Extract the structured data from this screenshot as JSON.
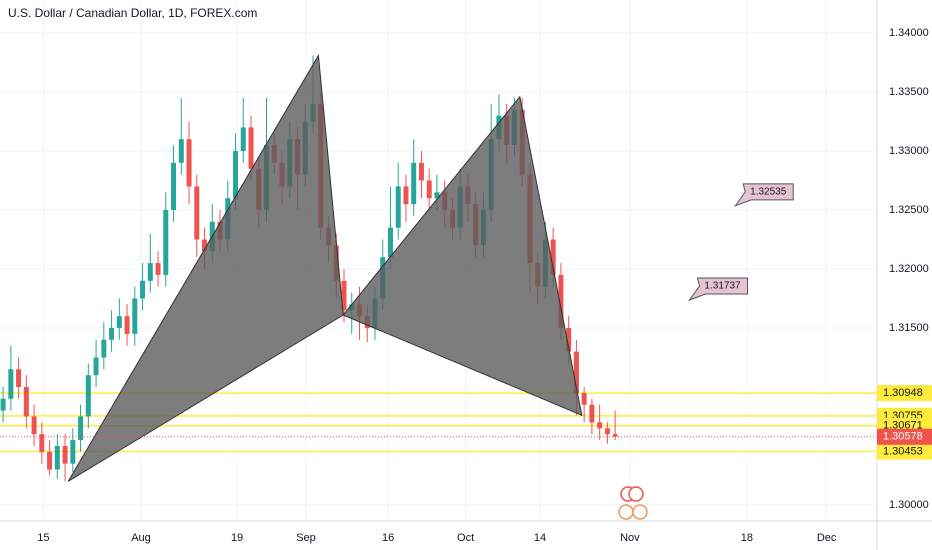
{
  "chart_data": {
    "type": "candlestick",
    "title": "U.S. Dollar / Canadian Dollar, 1D, FOREX.com",
    "x": [
      0,
      1,
      2,
      3,
      4,
      5,
      6,
      7,
      8,
      9,
      10,
      11,
      12,
      13,
      14,
      15,
      16,
      17,
      18,
      19,
      20,
      21,
      22,
      23,
      24,
      25,
      26,
      27,
      28,
      29,
      30,
      31,
      32,
      33,
      34,
      35,
      36,
      37,
      38,
      39,
      40,
      41,
      42,
      43,
      44,
      45,
      46,
      47,
      48,
      49,
      50,
      51,
      52,
      53,
      54,
      55,
      56,
      57,
      58,
      59,
      60,
      61,
      62,
      63,
      64,
      65,
      66,
      67,
      68,
      69,
      70,
      71,
      72,
      73,
      74,
      75,
      76,
      77,
      78,
      79
    ],
    "open": [
      1.308,
      1.309,
      1.3115,
      1.31,
      1.3075,
      1.306,
      1.3045,
      1.303,
      1.305,
      1.3035,
      1.3055,
      1.3075,
      1.311,
      1.3125,
      1.314,
      1.315,
      1.316,
      1.3145,
      1.3175,
      1.319,
      1.3205,
      1.3195,
      1.325,
      1.329,
      1.331,
      1.327,
      1.3225,
      1.3215,
      1.324,
      1.3225,
      1.326,
      1.33,
      1.332,
      1.3285,
      1.325,
      1.3305,
      1.329,
      1.327,
      1.331,
      1.328,
      1.3325,
      1.334,
      1.3235,
      1.322,
      1.319,
      1.3165,
      1.317,
      1.316,
      1.315,
      1.3175,
      1.321,
      1.3235,
      1.327,
      1.3255,
      1.329,
      1.3275,
      1.326,
      1.3265,
      1.325,
      1.3235,
      1.327,
      1.3255,
      1.322,
      1.325,
      1.331,
      1.333,
      1.3305,
      1.3335,
      1.328,
      1.3205,
      1.3185,
      1.3225,
      1.3195,
      1.315,
      1.313,
      1.3095,
      1.3085,
      1.307,
      1.3065,
      1.306
    ],
    "high": [
      1.31,
      1.3135,
      1.3125,
      1.311,
      1.3085,
      1.307,
      1.3055,
      1.306,
      1.306,
      1.3065,
      1.3085,
      1.312,
      1.314,
      1.3155,
      1.3165,
      1.3175,
      1.317,
      1.3185,
      1.3205,
      1.323,
      1.3215,
      1.3265,
      1.3305,
      1.3345,
      1.3325,
      1.328,
      1.3235,
      1.3255,
      1.325,
      1.3275,
      1.3315,
      1.3345,
      1.333,
      1.3295,
      1.3345,
      1.3315,
      1.33,
      1.3325,
      1.332,
      1.334,
      1.3381,
      1.335,
      1.3245,
      1.323,
      1.32,
      1.318,
      1.3185,
      1.317,
      1.3185,
      1.3225,
      1.327,
      1.329,
      1.328,
      1.331,
      1.33,
      1.3285,
      1.328,
      1.3275,
      1.326,
      1.3285,
      1.328,
      1.3265,
      1.3265,
      1.334,
      1.3348,
      1.334,
      1.3345,
      1.3345,
      1.329,
      1.3215,
      1.324,
      1.3235,
      1.3205,
      1.316,
      1.314,
      1.31,
      1.309,
      1.3085,
      1.307,
      1.308
    ],
    "low": [
      1.307,
      1.308,
      1.309,
      1.3065,
      1.305,
      1.3035,
      1.3025,
      1.3022,
      1.302,
      1.3028,
      1.3045,
      1.3065,
      1.31,
      1.3115,
      1.313,
      1.314,
      1.3135,
      1.3135,
      1.3165,
      1.318,
      1.3185,
      1.3185,
      1.324,
      1.328,
      1.3255,
      1.321,
      1.32,
      1.3205,
      1.3215,
      1.3215,
      1.325,
      1.329,
      1.3275,
      1.3235,
      1.324,
      1.328,
      1.3255,
      1.326,
      1.325,
      1.327,
      1.3315,
      1.3225,
      1.3205,
      1.3175,
      1.3155,
      1.3145,
      1.314,
      1.3138,
      1.314,
      1.3165,
      1.32,
      1.3225,
      1.324,
      1.3245,
      1.326,
      1.325,
      1.325,
      1.3235,
      1.3225,
      1.3225,
      1.324,
      1.321,
      1.321,
      1.324,
      1.33,
      1.329,
      1.3295,
      1.327,
      1.318,
      1.317,
      1.3175,
      1.3185,
      1.314,
      1.312,
      1.3076,
      1.307,
      1.306,
      1.3055,
      1.3052,
      1.3055
    ],
    "close": [
      1.309,
      1.3115,
      1.31,
      1.3075,
      1.306,
      1.3045,
      1.303,
      1.305,
      1.3035,
      1.3055,
      1.3075,
      1.311,
      1.3125,
      1.314,
      1.315,
      1.316,
      1.3145,
      1.3175,
      1.319,
      1.3205,
      1.3195,
      1.325,
      1.329,
      1.331,
      1.327,
      1.3225,
      1.3215,
      1.324,
      1.3225,
      1.326,
      1.33,
      1.332,
      1.3285,
      1.325,
      1.3305,
      1.329,
      1.327,
      1.331,
      1.328,
      1.3325,
      1.334,
      1.3235,
      1.322,
      1.319,
      1.3165,
      1.317,
      1.316,
      1.315,
      1.3175,
      1.321,
      1.3235,
      1.327,
      1.3255,
      1.329,
      1.3275,
      1.326,
      1.3265,
      1.325,
      1.3235,
      1.327,
      1.3255,
      1.322,
      1.325,
      1.331,
      1.333,
      1.3305,
      1.3335,
      1.328,
      1.3205,
      1.3185,
      1.3225,
      1.3195,
      1.315,
      1.313,
      1.3095,
      1.3085,
      1.307,
      1.3065,
      1.306,
      1.3058
    ],
    "up_color": "#26a69a",
    "down_color": "#ef5350",
    "xlim": [
      -0.4,
      112.8
    ],
    "ylim": [
      1.29864,
      1.3428
    ],
    "xticks": [
      {
        "value": 5.2,
        "label": "15"
      },
      {
        "value": 17.8,
        "label": "Aug"
      },
      {
        "value": 30.2,
        "label": "19"
      },
      {
        "value": 39.1,
        "label": "Sep"
      },
      {
        "value": 49.7,
        "label": "16"
      },
      {
        "value": 59.7,
        "label": "Oct"
      },
      {
        "value": 69.3,
        "label": "14"
      },
      {
        "value": 80.9,
        "label": "Nov"
      },
      {
        "value": 96,
        "label": "18"
      },
      {
        "value": 106.3,
        "label": "Dec"
      }
    ],
    "yticks": [
      {
        "value": 1.34,
        "label": "1.34000"
      },
      {
        "value": 1.335,
        "label": "1.33500"
      },
      {
        "value": 1.33,
        "label": "1.33000"
      },
      {
        "value": 1.325,
        "label": "1.32500"
      },
      {
        "value": 1.32,
        "label": "1.32000"
      },
      {
        "value": 1.315,
        "label": "1.31500"
      },
      {
        "value": 1.3,
        "label": "1.30000"
      }
    ],
    "grid": true,
    "horizontal_lines": [
      1.30948,
      1.30755,
      1.30671,
      1.30453
    ],
    "line_color": "#ffeb3b",
    "last_price": 1.30578,
    "last_price_color": "#ef5350",
    "pattern": {
      "color": "#5d5d5d",
      "points": [
        {
          "x": 8.4,
          "y": 1.302
        },
        {
          "x": 40.7,
          "y": 1.3381
        },
        {
          "x": 43.9,
          "y": 1.3161
        },
        {
          "x": 66.7,
          "y": 1.3346
        },
        {
          "x": 74.7,
          "y": 1.3076
        }
      ]
    },
    "notes": [
      {
        "x": 94.5,
        "value": 1.32535
      },
      {
        "x": 88.6,
        "value": 1.31737
      }
    ]
  }
}
